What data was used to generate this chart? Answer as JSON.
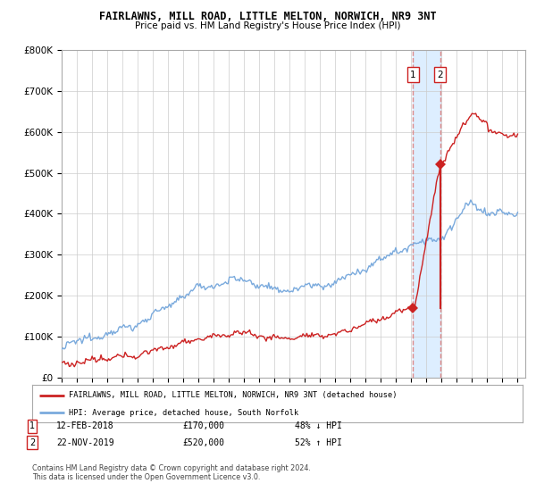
{
  "title": "FAIRLAWNS, MILL ROAD, LITTLE MELTON, NORWICH, NR9 3NT",
  "subtitle": "Price paid vs. HM Land Registry's House Price Index (HPI)",
  "hpi_label": "HPI: Average price, detached house, South Norfolk",
  "price_label": "FAIRLAWNS, MILL ROAD, LITTLE MELTON, NORWICH, NR9 3NT (detached house)",
  "footer": "Contains HM Land Registry data © Crown copyright and database right 2024.\nThis data is licensed under the Open Government Licence v3.0.",
  "hpi_color": "#7aaadd",
  "price_color": "#cc2222",
  "dashed_color": "#dd8888",
  "highlight_color": "#ddeeff",
  "ylim": [
    0,
    800000
  ],
  "xlim_start": 1995.0,
  "xlim_end": 2025.5,
  "sale1_x": 2018.12,
  "sale1_y": 170000,
  "sale2_x": 2019.9,
  "sale2_y": 520000
}
